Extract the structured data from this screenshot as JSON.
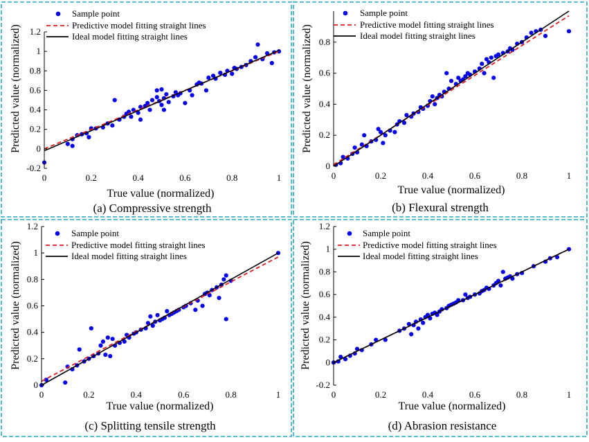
{
  "legend": {
    "sample": "Sample point",
    "predictive": "Predictive model fitting straight lines",
    "ideal": "Ideal model fitting straight lines"
  },
  "colors": {
    "points": "#0000ee",
    "predictive": "#e31a1c",
    "ideal": "#000000",
    "border": "#2aa6c9"
  },
  "chart_data": [
    {
      "type": "scatter",
      "title": "(a) Compressive strength",
      "xlabel": "True value (normalized)",
      "ylabel": "Predicted value (normalized)",
      "xlim": [
        0,
        1
      ],
      "ylim": [
        -0.2,
        1.2
      ],
      "xticks": [
        "0",
        "0.2",
        "0.4",
        "0.6",
        "0.8",
        "1"
      ],
      "yticks": [
        "-0.2",
        "0",
        "0.2",
        "0.4",
        "0.6",
        "0.8",
        "1",
        "1.2"
      ],
      "ytick_values": [
        -0.2,
        0,
        0.2,
        0.4,
        0.6,
        0.8,
        1,
        1.2
      ],
      "predictive_line": [
        [
          0,
          0.0
        ],
        [
          1,
          1.0
        ]
      ],
      "ideal_line": [
        [
          0,
          -0.02
        ],
        [
          1,
          1.01
        ]
      ],
      "points": [
        [
          0,
          -0.14
        ],
        [
          0.1,
          0.05
        ],
        [
          0.12,
          0.03
        ],
        [
          0.12,
          0.1
        ],
        [
          0.14,
          0.14
        ],
        [
          0.16,
          0.15
        ],
        [
          0.18,
          0.16
        ],
        [
          0.19,
          0.12
        ],
        [
          0.2,
          0.21
        ],
        [
          0.22,
          0.21
        ],
        [
          0.25,
          0.22
        ],
        [
          0.27,
          0.26
        ],
        [
          0.29,
          0.24
        ],
        [
          0.3,
          0.5
        ],
        [
          0.32,
          0.3
        ],
        [
          0.34,
          0.33
        ],
        [
          0.35,
          0.36
        ],
        [
          0.36,
          0.38
        ],
        [
          0.37,
          0.33
        ],
        [
          0.38,
          0.4
        ],
        [
          0.4,
          0.37
        ],
        [
          0.41,
          0.3
        ],
        [
          0.41,
          0.43
        ],
        [
          0.43,
          0.44
        ],
        [
          0.44,
          0.47
        ],
        [
          0.45,
          0.4
        ],
        [
          0.46,
          0.5
        ],
        [
          0.48,
          0.53
        ],
        [
          0.48,
          0.6
        ],
        [
          0.49,
          0.49
        ],
        [
          0.5,
          0.45
        ],
        [
          0.5,
          0.61
        ],
        [
          0.51,
          0.4
        ],
        [
          0.51,
          0.52
        ],
        [
          0.52,
          0.56
        ],
        [
          0.53,
          0.48
        ],
        [
          0.55,
          0.54
        ],
        [
          0.56,
          0.58
        ],
        [
          0.57,
          0.55
        ],
        [
          0.58,
          0.57
        ],
        [
          0.6,
          0.47
        ],
        [
          0.62,
          0.6
        ],
        [
          0.63,
          0.55
        ],
        [
          0.65,
          0.66
        ],
        [
          0.66,
          0.68
        ],
        [
          0.67,
          0.67
        ],
        [
          0.69,
          0.6
        ],
        [
          0.7,
          0.73
        ],
        [
          0.72,
          0.75
        ],
        [
          0.73,
          0.72
        ],
        [
          0.75,
          0.78
        ],
        [
          0.77,
          0.76
        ],
        [
          0.78,
          0.8
        ],
        [
          0.8,
          0.77
        ],
        [
          0.81,
          0.83
        ],
        [
          0.82,
          0.82
        ],
        [
          0.84,
          0.84
        ],
        [
          0.86,
          0.86
        ],
        [
          0.88,
          0.9
        ],
        [
          0.9,
          0.94
        ],
        [
          0.91,
          1.07
        ],
        [
          0.93,
          0.92
        ],
        [
          0.95,
          0.98
        ],
        [
          0.97,
          0.88
        ],
        [
          0.98,
          0.99
        ],
        [
          1.0,
          1.0
        ]
      ]
    },
    {
      "type": "scatter",
      "title": "(b) Flexural strength",
      "xlabel": "True value (normalized)",
      "ylabel": "Predicted value (normalized)",
      "xlim": [
        0,
        1
      ],
      "ylim": [
        0,
        1
      ],
      "xticks": [
        "0",
        "0.2",
        "0.4",
        "0.6",
        "0.8",
        "1"
      ],
      "yticks": [
        "0",
        "0.2",
        "0.4",
        "0.6",
        "0.8"
      ],
      "ytick_values": [
        0,
        0.2,
        0.4,
        0.6,
        0.8
      ],
      "predictive_line": [
        [
          0,
          0.01
        ],
        [
          1,
          0.97
        ]
      ],
      "ideal_line": [
        [
          0,
          0
        ],
        [
          1,
          1
        ]
      ],
      "points": [
        [
          0.01,
          0.01
        ],
        [
          0.03,
          0.02
        ],
        [
          0.04,
          0.06
        ],
        [
          0.06,
          0.05
        ],
        [
          0.08,
          0.08
        ],
        [
          0.09,
          0.12
        ],
        [
          0.1,
          0.09
        ],
        [
          0.12,
          0.14
        ],
        [
          0.13,
          0.2
        ],
        [
          0.14,
          0.13
        ],
        [
          0.16,
          0.16
        ],
        [
          0.18,
          0.17
        ],
        [
          0.19,
          0.24
        ],
        [
          0.2,
          0.22
        ],
        [
          0.21,
          0.15
        ],
        [
          0.22,
          0.2
        ],
        [
          0.24,
          0.23
        ],
        [
          0.26,
          0.22
        ],
        [
          0.27,
          0.27
        ],
        [
          0.28,
          0.29
        ],
        [
          0.3,
          0.28
        ],
        [
          0.31,
          0.33
        ],
        [
          0.33,
          0.32
        ],
        [
          0.34,
          0.34
        ],
        [
          0.36,
          0.35
        ],
        [
          0.37,
          0.38
        ],
        [
          0.38,
          0.37
        ],
        [
          0.4,
          0.39
        ],
        [
          0.41,
          0.42
        ],
        [
          0.42,
          0.45
        ],
        [
          0.43,
          0.4
        ],
        [
          0.44,
          0.44
        ],
        [
          0.45,
          0.46
        ],
        [
          0.46,
          0.45
        ],
        [
          0.47,
          0.48
        ],
        [
          0.48,
          0.6
        ],
        [
          0.49,
          0.5
        ],
        [
          0.5,
          0.55
        ],
        [
          0.52,
          0.53
        ],
        [
          0.53,
          0.57
        ],
        [
          0.54,
          0.55
        ],
        [
          0.55,
          0.56
        ],
        [
          0.56,
          0.58
        ],
        [
          0.57,
          0.6
        ],
        [
          0.58,
          0.59
        ],
        [
          0.6,
          0.61
        ],
        [
          0.62,
          0.63
        ],
        [
          0.63,
          0.66
        ],
        [
          0.64,
          0.6
        ],
        [
          0.65,
          0.69
        ],
        [
          0.66,
          0.67
        ],
        [
          0.67,
          0.7
        ],
        [
          0.68,
          0.57
        ],
        [
          0.69,
          0.71
        ],
        [
          0.7,
          0.72
        ],
        [
          0.72,
          0.73
        ],
        [
          0.74,
          0.74
        ],
        [
          0.75,
          0.76
        ],
        [
          0.76,
          0.75
        ],
        [
          0.78,
          0.79
        ],
        [
          0.8,
          0.8
        ],
        [
          0.82,
          0.83
        ],
        [
          0.84,
          0.86
        ],
        [
          0.86,
          0.87
        ],
        [
          0.88,
          0.88
        ],
        [
          0.9,
          0.84
        ],
        [
          1.0,
          0.87
        ]
      ]
    },
    {
      "type": "scatter",
      "title": "(c) Splitting tensile strength",
      "xlabel": "True value (normalized)",
      "ylabel": "Predicted value (normalized)",
      "xlim": [
        0,
        1
      ],
      "ylim": [
        0,
        1.2
      ],
      "xticks": [
        "0",
        "0.2",
        "0.4",
        "0.6",
        "0.8",
        "1"
      ],
      "yticks": [
        "0",
        "0.2",
        "0.4",
        "0.6",
        "0.8",
        "1",
        "1.2"
      ],
      "ytick_values": [
        0,
        0.2,
        0.4,
        0.6,
        0.8,
        1,
        1.2
      ],
      "predictive_line": [
        [
          0,
          0.03
        ],
        [
          1,
          0.97
        ]
      ],
      "ideal_line": [
        [
          0,
          0
        ],
        [
          1,
          1
        ]
      ],
      "points": [
        [
          0,
          0
        ],
        [
          0.02,
          0.04
        ],
        [
          0.1,
          0.02
        ],
        [
          0.11,
          0.14
        ],
        [
          0.13,
          0.12
        ],
        [
          0.15,
          0.15
        ],
        [
          0.16,
          0.27
        ],
        [
          0.18,
          0.18
        ],
        [
          0.2,
          0.2
        ],
        [
          0.21,
          0.43
        ],
        [
          0.22,
          0.22
        ],
        [
          0.24,
          0.24
        ],
        [
          0.25,
          0.3
        ],
        [
          0.26,
          0.33
        ],
        [
          0.27,
          0.23
        ],
        [
          0.28,
          0.36
        ],
        [
          0.29,
          0.22
        ],
        [
          0.3,
          0.35
        ],
        [
          0.31,
          0.3
        ],
        [
          0.33,
          0.32
        ],
        [
          0.35,
          0.33
        ],
        [
          0.36,
          0.38
        ],
        [
          0.37,
          0.36
        ],
        [
          0.39,
          0.39
        ],
        [
          0.4,
          0.4
        ],
        [
          0.42,
          0.42
        ],
        [
          0.44,
          0.43
        ],
        [
          0.45,
          0.47
        ],
        [
          0.46,
          0.52
        ],
        [
          0.47,
          0.45
        ],
        [
          0.48,
          0.48
        ],
        [
          0.49,
          0.53
        ],
        [
          0.5,
          0.49
        ],
        [
          0.51,
          0.5
        ],
        [
          0.52,
          0.51
        ],
        [
          0.53,
          0.56
        ],
        [
          0.54,
          0.53
        ],
        [
          0.55,
          0.54
        ],
        [
          0.56,
          0.55
        ],
        [
          0.57,
          0.56
        ],
        [
          0.58,
          0.57
        ],
        [
          0.6,
          0.59
        ],
        [
          0.61,
          0.6
        ],
        [
          0.63,
          0.62
        ],
        [
          0.65,
          0.57
        ],
        [
          0.66,
          0.64
        ],
        [
          0.68,
          0.6
        ],
        [
          0.69,
          0.69
        ],
        [
          0.7,
          0.7
        ],
        [
          0.71,
          0.68
        ],
        [
          0.72,
          0.72
        ],
        [
          0.74,
          0.74
        ],
        [
          0.75,
          0.66
        ],
        [
          0.76,
          0.76
        ],
        [
          0.77,
          0.8
        ],
        [
          0.78,
          0.83
        ],
        [
          0.78,
          0.5
        ],
        [
          0.8,
          0.79
        ],
        [
          1.0,
          1.0
        ]
      ]
    },
    {
      "type": "scatter",
      "title": "(d) Abrasion resistance",
      "xlabel": "True value (normalized)",
      "ylabel": "Predicted value (normalized)",
      "xlim": [
        0,
        1
      ],
      "ylim": [
        -0.2,
        1.2
      ],
      "xticks": [
        "0",
        "0.2",
        "0.4",
        "0.6",
        "0.8",
        "1"
      ],
      "yticks": [
        "-0.2",
        "0",
        "0.2",
        "0.4",
        "0.6",
        "0.8",
        "1",
        "1.2"
      ],
      "ytick_values": [
        -0.2,
        0,
        0.2,
        0.4,
        0.6,
        0.8,
        1,
        1.2
      ],
      "predictive_line": [
        [
          0,
          0
        ],
        [
          1,
          1
        ]
      ],
      "ideal_line": [
        [
          0,
          0
        ],
        [
          1,
          1
        ]
      ],
      "points": [
        [
          0,
          0
        ],
        [
          0.02,
          0.01
        ],
        [
          0.03,
          0.05
        ],
        [
          0.05,
          0.03
        ],
        [
          0.07,
          0.06
        ],
        [
          0.09,
          0.08
        ],
        [
          0.1,
          0.12
        ],
        [
          0.12,
          0.11
        ],
        [
          0.16,
          0.16
        ],
        [
          0.18,
          0.2
        ],
        [
          0.22,
          0.2
        ],
        [
          0.28,
          0.28
        ],
        [
          0.3,
          0.3
        ],
        [
          0.32,
          0.34
        ],
        [
          0.33,
          0.25
        ],
        [
          0.34,
          0.33
        ],
        [
          0.35,
          0.36
        ],
        [
          0.36,
          0.3
        ],
        [
          0.37,
          0.38
        ],
        [
          0.38,
          0.35
        ],
        [
          0.39,
          0.4
        ],
        [
          0.4,
          0.42
        ],
        [
          0.41,
          0.39
        ],
        [
          0.42,
          0.43
        ],
        [
          0.43,
          0.44
        ],
        [
          0.44,
          0.42
        ],
        [
          0.45,
          0.45
        ],
        [
          0.46,
          0.47
        ],
        [
          0.48,
          0.48
        ],
        [
          0.49,
          0.5
        ],
        [
          0.5,
          0.51
        ],
        [
          0.51,
          0.52
        ],
        [
          0.52,
          0.53
        ],
        [
          0.53,
          0.55
        ],
        [
          0.55,
          0.55
        ],
        [
          0.56,
          0.6
        ],
        [
          0.57,
          0.57
        ],
        [
          0.58,
          0.58
        ],
        [
          0.6,
          0.6
        ],
        [
          0.62,
          0.61
        ],
        [
          0.63,
          0.63
        ],
        [
          0.64,
          0.64
        ],
        [
          0.65,
          0.66
        ],
        [
          0.66,
          0.65
        ],
        [
          0.68,
          0.68
        ],
        [
          0.69,
          0.7
        ],
        [
          0.7,
          0.72
        ],
        [
          0.71,
          0.68
        ],
        [
          0.72,
          0.8
        ],
        [
          0.73,
          0.74
        ],
        [
          0.74,
          0.75
        ],
        [
          0.75,
          0.76
        ],
        [
          0.76,
          0.74
        ],
        [
          0.78,
          0.78
        ],
        [
          0.8,
          0.79
        ],
        [
          0.85,
          0.85
        ],
        [
          0.9,
          0.89
        ],
        [
          0.92,
          0.92
        ],
        [
          0.95,
          0.93
        ],
        [
          1.0,
          1.0
        ]
      ]
    }
  ]
}
